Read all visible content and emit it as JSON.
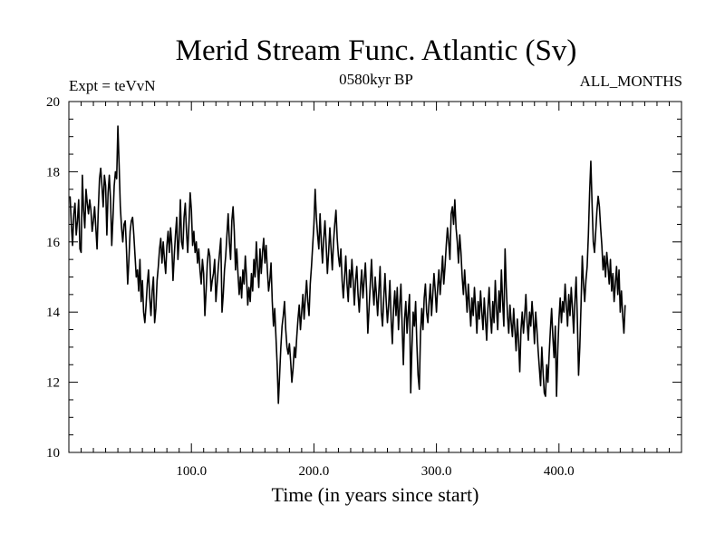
{
  "chart_data": {
    "type": "line",
    "title": "Merid Stream Func. Atlantic (Sv)",
    "subtitle_left": "Expt = teVvN",
    "subtitle_center": "0580kyr BP",
    "subtitle_right": "ALL_MONTHS",
    "xlabel": "Time (in years since start)",
    "ylabel": "",
    "xlim": [
      0,
      500
    ],
    "ylim": [
      10,
      20
    ],
    "x_ticks": [
      100,
      200,
      300,
      400
    ],
    "x_tick_labels": [
      "100.0",
      "200.0",
      "300.0",
      "400.0"
    ],
    "y_ticks": [
      10,
      12,
      14,
      16,
      18,
      20
    ],
    "y_tick_labels": [
      "10",
      "12",
      "14",
      "16",
      "18",
      "20"
    ],
    "grid": false,
    "series": [
      {
        "color": "#000000",
        "x_start": 1,
        "x_step": 1,
        "values": [
          17.3,
          16.5,
          15.9,
          16.8,
          17.1,
          16.2,
          16.6,
          17.2,
          15.8,
          15.7,
          17.9,
          16.9,
          16.4,
          17.5,
          17.1,
          16.8,
          17.2,
          16.9,
          16.3,
          16.6,
          17.0,
          16.4,
          15.8,
          16.9,
          17.8,
          18.1,
          17.6,
          17.0,
          17.9,
          17.6,
          16.2,
          17.4,
          17.9,
          17.2,
          15.9,
          16.7,
          17.6,
          18.0,
          17.8,
          19.3,
          18.2,
          17.0,
          16.4,
          16.0,
          16.5,
          16.6,
          15.8,
          14.8,
          15.5,
          16.3,
          16.6,
          16.7,
          16.2,
          15.6,
          15.0,
          15.2,
          14.6,
          15.5,
          14.3,
          14.9,
          14.0,
          13.7,
          14.2,
          14.8,
          15.2,
          14.4,
          13.9,
          14.6,
          15.0,
          13.7,
          14.1,
          14.9,
          15.3,
          15.8,
          16.1,
          15.4,
          16.0,
          15.5,
          15.1,
          15.9,
          16.3,
          15.7,
          16.4,
          15.9,
          14.9,
          15.6,
          16.2,
          16.7,
          15.5,
          16.1,
          17.2,
          16.0,
          15.8,
          16.7,
          17.1,
          16.3,
          15.7,
          16.5,
          17.4,
          16.9,
          15.9,
          16.3,
          15.7,
          16.0,
          15.4,
          15.8,
          15.2,
          14.8,
          15.5,
          15.1,
          13.9,
          14.6,
          15.4,
          15.8,
          15.6,
          14.6,
          14.9,
          15.1,
          15.5,
          14.3,
          14.8,
          15.3,
          15.7,
          16.1,
          14.0,
          14.5,
          15.2,
          15.6,
          16.2,
          16.8,
          16.0,
          15.5,
          16.6,
          17.0,
          16.3,
          15.2,
          15.8,
          15.1,
          14.5,
          15.0,
          14.4,
          15.2,
          14.8,
          15.6,
          15.0,
          14.2,
          14.7,
          14.3,
          15.1,
          14.6,
          15.5,
          15.0,
          16.0,
          15.3,
          14.7,
          15.8,
          15.1,
          15.7,
          16.1,
          15.4,
          15.9,
          15.2,
          14.6,
          14.9,
          15.4,
          14.3,
          13.6,
          14.1,
          13.3,
          12.5,
          11.4,
          12.2,
          13.0,
          13.6,
          13.9,
          14.3,
          13.5,
          13.0,
          12.8,
          13.1,
          12.6,
          12.0,
          12.4,
          13.0,
          12.7,
          13.3,
          13.8,
          14.2,
          13.5,
          14.0,
          14.5,
          13.8,
          14.4,
          14.9,
          14.3,
          13.9,
          14.8,
          15.3,
          15.9,
          16.5,
          17.5,
          16.7,
          16.2,
          15.8,
          16.8,
          16.0,
          15.4,
          16.1,
          16.6,
          15.9,
          15.1,
          15.7,
          16.4,
          15.8,
          15.2,
          16.0,
          16.5,
          16.9,
          16.1,
          15.6,
          15.3,
          15.8,
          14.9,
          14.4,
          15.0,
          15.6,
          14.8,
          14.3,
          15.2,
          14.7,
          15.5,
          14.9,
          14.2,
          14.9,
          15.3,
          14.5,
          14.0,
          14.7,
          15.2,
          14.4,
          14.9,
          15.4,
          14.6,
          13.4,
          14.1,
          14.8,
          15.5,
          14.7,
          14.2,
          15.0,
          14.5,
          13.9,
          14.6,
          15.3,
          14.0,
          13.6,
          14.4,
          15.1,
          14.3,
          13.7,
          14.2,
          14.9,
          13.8,
          13.1,
          14.1,
          14.6,
          13.9,
          14.7,
          13.5,
          14.2,
          14.8,
          13.6,
          12.5,
          13.8,
          14.3,
          13.4,
          14.0,
          14.5,
          11.7,
          13.0,
          14.0,
          13.6,
          14.3,
          13.1,
          12.2,
          11.8,
          13.4,
          14.1,
          13.5,
          14.4,
          14.8,
          14.0,
          13.7,
          14.3,
          14.8,
          13.9,
          14.5,
          15.1,
          14.6,
          14.0,
          14.7,
          15.2,
          14.5,
          15.0,
          15.6,
          14.8,
          15.3,
          15.9,
          16.4,
          16.0,
          15.5,
          16.8,
          17.0,
          16.5,
          17.2,
          16.4,
          16.0,
          15.4,
          16.2,
          15.7,
          15.0,
          14.5,
          15.2,
          14.6,
          14.0,
          14.8,
          14.2,
          13.6,
          14.4,
          13.9,
          14.7,
          14.1,
          13.4,
          14.3,
          13.8,
          14.6,
          14.0,
          13.5,
          14.4,
          13.8,
          13.2,
          14.1,
          14.7,
          13.9,
          13.4,
          14.3,
          13.7,
          14.9,
          14.1,
          13.5,
          14.6,
          14.0,
          15.2,
          14.3,
          13.6,
          15.8,
          14.7,
          13.9,
          13.4,
          14.2,
          13.7,
          13.3,
          14.1,
          13.5,
          12.9,
          13.8,
          13.2,
          12.3,
          13.5,
          14.0,
          13.4,
          13.9,
          14.5,
          13.7,
          13.2,
          14.0,
          13.6,
          14.3,
          13.8,
          13.1,
          14.0,
          13.5,
          12.9,
          12.4,
          11.9,
          13.0,
          12.3,
          11.7,
          11.6,
          12.5,
          12.0,
          12.8,
          13.5,
          14.1,
          13.3,
          12.7,
          13.6,
          11.6,
          12.9,
          13.8,
          14.4,
          13.7,
          14.3,
          14.0,
          14.8,
          14.2,
          13.6,
          14.5,
          13.9,
          14.7,
          14.1,
          13.4,
          14.3,
          15.0,
          13.8,
          12.2,
          13.0,
          14.2,
          15.6,
          14.8,
          14.3,
          14.9,
          15.3,
          16.2,
          17.4,
          18.3,
          17.1,
          16.0,
          15.7,
          16.3,
          16.9,
          17.3,
          17.0,
          16.4,
          15.9,
          15.2,
          15.6,
          15.0,
          15.7,
          15.3,
          14.8,
          15.5,
          14.6,
          15.1,
          14.3,
          14.8,
          15.3,
          14.5,
          15.2,
          14.0,
          14.6,
          13.9,
          13.4,
          14.2
        ]
      }
    ]
  }
}
